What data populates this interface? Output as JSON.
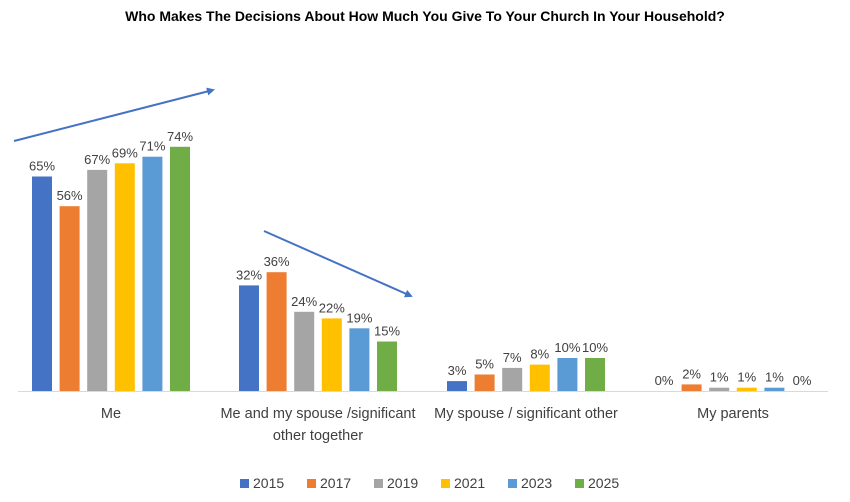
{
  "chart_data": {
    "type": "bar",
    "title": "Who Makes The Decisions About How Much You Give To Your Church In Your Household?",
    "categories": [
      [
        "Me"
      ],
      [
        "Me and my spouse /significant",
        "other together"
      ],
      [
        "My spouse / significant other"
      ],
      [
        "My parents"
      ]
    ],
    "series": [
      {
        "name": "2015",
        "color": "#4472C4",
        "values": [
          65,
          32,
          3,
          0
        ]
      },
      {
        "name": "2017",
        "color": "#ED7D31",
        "values": [
          56,
          36,
          5,
          2
        ]
      },
      {
        "name": "2019",
        "color": "#A5A5A5",
        "values": [
          67,
          24,
          7,
          1
        ]
      },
      {
        "name": "2021",
        "color": "#FFC000",
        "values": [
          69,
          22,
          8,
          1
        ]
      },
      {
        "name": "2023",
        "color": "#5B9BD5",
        "values": [
          71,
          19,
          10,
          1
        ]
      },
      {
        "name": "2025",
        "color": "#70AD47",
        "values": [
          74,
          15,
          10,
          0
        ]
      }
    ],
    "value_suffix": "%",
    "ylim": [
      0,
      100
    ],
    "grid": false,
    "legend": "bottom",
    "annotations": [
      {
        "kind": "trend-arrow",
        "category": "Me",
        "direction": "up"
      },
      {
        "kind": "trend-arrow",
        "category": "Me and my spouse /significant other together",
        "direction": "down"
      }
    ],
    "arrow_color": "#4472C4"
  }
}
